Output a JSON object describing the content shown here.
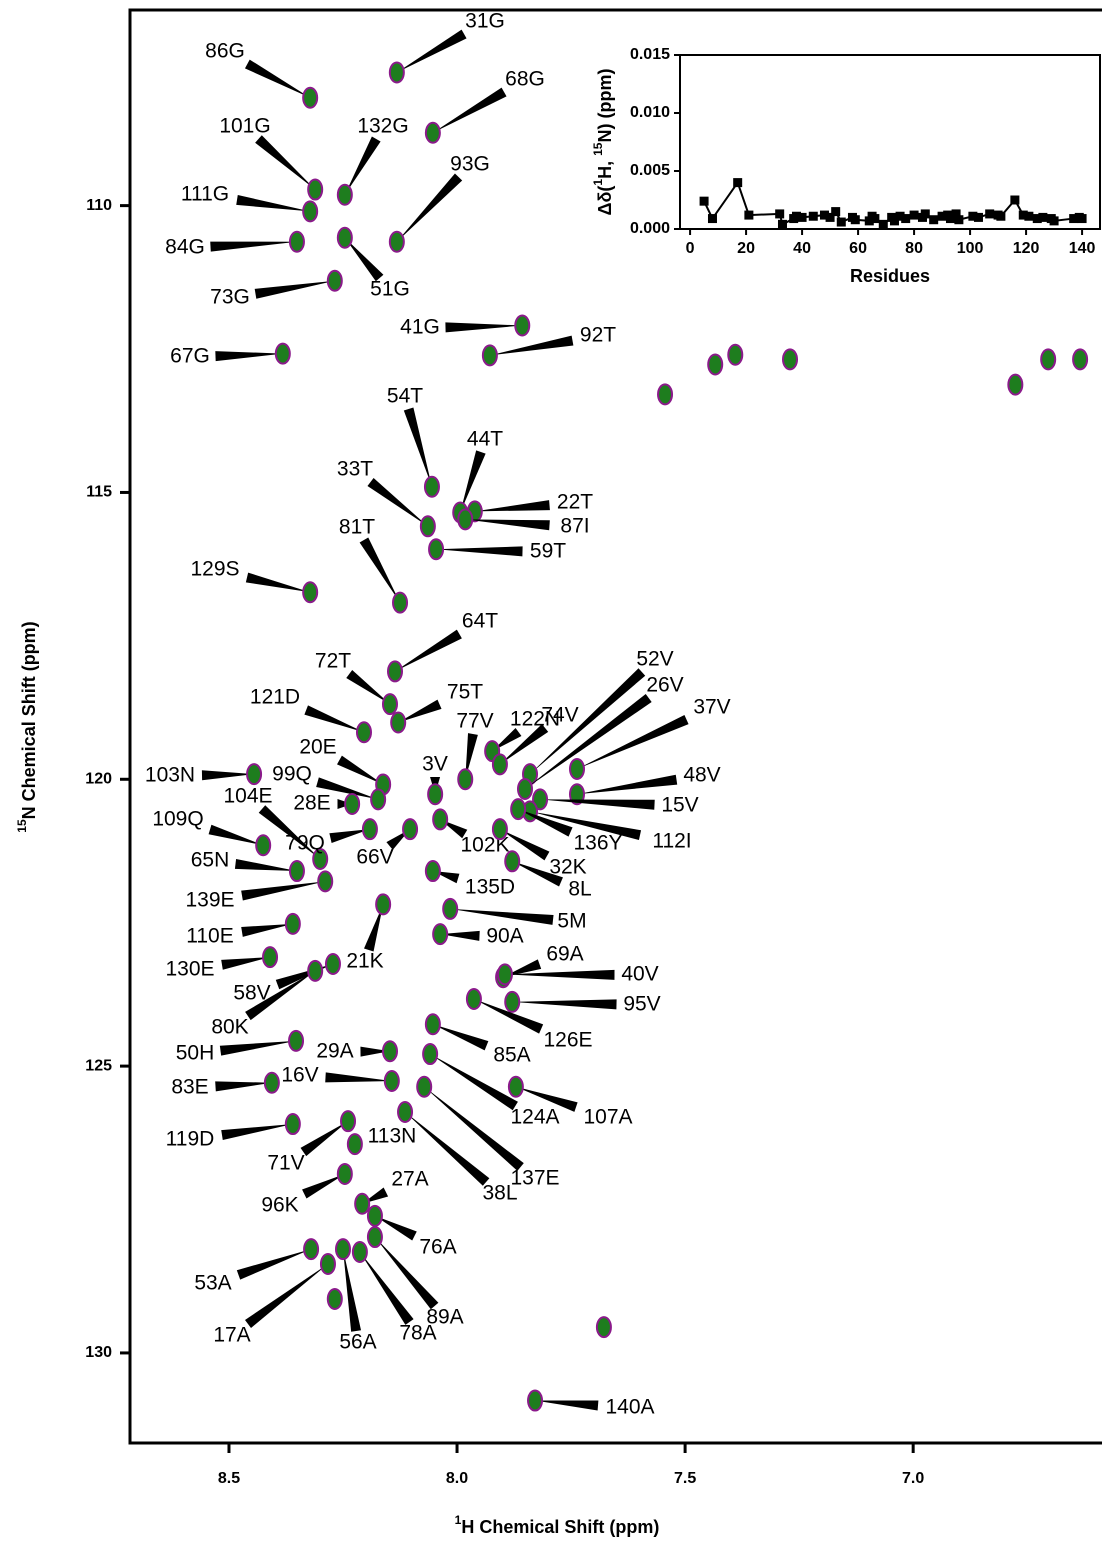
{
  "chart_data": [
    {
      "type": "peaks",
      "x_label": [
        "1",
        "H Chemical Shift (ppm)"
      ],
      "y_label": [
        "15",
        "N Chemical Shift (ppm)"
      ],
      "xlim": [
        8.717,
        6.586
      ],
      "ylim": [
        106.59,
        131.57
      ],
      "xticks": [
        8.5,
        {
          "value": 8,
          "label": "8.0"
        },
        7.5,
        {
          "value": 7,
          "label": "7.0"
        }
      ],
      "yticks": [
        110,
        115,
        120,
        125,
        130
      ],
      "color": "#1e7d1e",
      "edge_color": "#8b1a8b",
      "labels": [
        "31G",
        "86G",
        "68G",
        "101G",
        "132G",
        "111G",
        "84G",
        "93G",
        "51G",
        "73G",
        "67G",
        "41G",
        "92T",
        "54T",
        "44T",
        "33T",
        "22T",
        "87I",
        "59T",
        "81T",
        "129S",
        "64T",
        "72T",
        "75T",
        "121D",
        "122N",
        "77V",
        "74V",
        "52V",
        "26V",
        "37V",
        "48V",
        "3V",
        "20E",
        "99Q",
        "103N",
        "28E",
        "104E",
        "79Q",
        "15V",
        "112I",
        "109Q",
        "136Y",
        "102K",
        "66V",
        "32K",
        "8L",
        "65N",
        "135D",
        "139E",
        "5M",
        "110E",
        "90A",
        "69A",
        "21K",
        "130E",
        "58V",
        "40V",
        "95V",
        "80K",
        "126E",
        "50H",
        "29A",
        "85A",
        "16V",
        "83E",
        "107A",
        "124A",
        "119D",
        "113N",
        "71V",
        "137E",
        "38L",
        "96K",
        "27A",
        "76A",
        "53A",
        "89A",
        "17A",
        "56A",
        "78A",
        "140A",
        null,
        null,
        null,
        null,
        null,
        null,
        null,
        null,
        null
      ],
      "x": [
        8.132,
        8.322,
        8.053,
        8.311,
        8.246,
        8.322,
        8.351,
        8.132,
        8.246,
        8.268,
        8.382,
        7.857,
        7.928,
        8.055,
        7.993,
        8.064,
        7.961,
        7.982,
        8.046,
        8.125,
        8.322,
        8.136,
        8.147,
        8.129,
        8.204,
        7.923,
        7.982,
        7.906,
        7.84,
        7.851,
        7.737,
        7.737,
        8.048,
        8.162,
        8.173,
        8.445,
        8.23,
        8.3,
        8.191,
        7.818,
        7.84,
        8.425,
        7.866,
        8.037,
        8.103,
        7.906,
        7.879,
        8.351,
        8.053,
        8.289,
        8.015,
        8.36,
        8.037,
        7.899,
        8.162,
        8.41,
        8.272,
        7.895,
        7.879,
        8.311,
        7.963,
        8.353,
        8.147,
        8.053,
        8.143,
        8.406,
        7.871,
        8.059,
        8.36,
        8.224,
        8.239,
        8.072,
        8.114,
        8.246,
        8.208,
        8.18,
        8.32,
        8.18,
        8.283,
        8.25,
        8.213,
        7.829,
        7.678,
        7.544,
        7.434,
        7.39,
        7.27,
        6.776,
        6.704,
        6.634,
        8.268
      ],
      "y": [
        107.68,
        108.12,
        108.73,
        109.72,
        109.81,
        110.1,
        110.63,
        110.63,
        110.56,
        111.31,
        112.58,
        112.09,
        112.61,
        114.9,
        115.35,
        115.59,
        115.33,
        115.47,
        115.99,
        116.92,
        116.74,
        118.12,
        118.69,
        119.01,
        119.18,
        119.51,
        120.0,
        119.74,
        119.91,
        120.17,
        119.82,
        120.26,
        120.26,
        120.09,
        120.35,
        119.91,
        120.43,
        121.39,
        120.87,
        120.35,
        120.56,
        121.15,
        120.52,
        120.7,
        120.87,
        120.87,
        121.43,
        121.6,
        121.6,
        121.78,
        122.26,
        122.52,
        122.7,
        123.45,
        122.18,
        123.1,
        123.22,
        123.4,
        123.88,
        123.34,
        123.83,
        124.56,
        124.74,
        124.27,
        125.26,
        125.29,
        125.36,
        124.79,
        126.01,
        126.36,
        125.96,
        125.36,
        125.8,
        126.88,
        127.4,
        127.61,
        128.19,
        127.98,
        128.45,
        128.19,
        128.24,
        130.83,
        129.55,
        113.29,
        112.77,
        112.6,
        112.68,
        113.12,
        112.68,
        112.68,
        129.06
      ]
    },
    {
      "type": "line",
      "x_label": "Residues",
      "y_label": [
        "Δδ(",
        "1",
        "H, ",
        "15",
        "N) (ppm)"
      ],
      "xlim": [
        -3.6,
        146.4
      ],
      "ylim": [
        0,
        0.015
      ],
      "xticks": [
        0,
        20,
        40,
        60,
        80,
        100,
        120,
        140
      ],
      "yticks": [
        {
          "value": 0,
          "label": "0.000"
        },
        {
          "value": 0.005,
          "label": "0.005"
        },
        {
          "value": 0.01,
          "label": "0.010"
        },
        {
          "value": 0.015,
          "label": "0.015"
        }
      ],
      "color": "#000000",
      "x": [
        5,
        8,
        17,
        21,
        32,
        33,
        37,
        38,
        40,
        44,
        48,
        50,
        52,
        54,
        58,
        59,
        64,
        65,
        66,
        69,
        72,
        73,
        75,
        77,
        80,
        83,
        84,
        87,
        90,
        92,
        93,
        95,
        96,
        101,
        103,
        107,
        110,
        111,
        116,
        119,
        121,
        124,
        126,
        129,
        130,
        137,
        139,
        140
      ],
      "values": [
        0.0024,
        0.0009,
        0.004,
        0.0012,
        0.0013,
        0.0004,
        0.0009,
        0.0011,
        0.001,
        0.0011,
        0.0012,
        0.001,
        0.0015,
        0.0006,
        0.001,
        0.0008,
        0.0007,
        0.0011,
        0.0009,
        0.0004,
        0.001,
        0.0007,
        0.0011,
        0.0009,
        0.0012,
        0.001,
        0.0013,
        0.0008,
        0.0011,
        0.0012,
        0.0009,
        0.0013,
        0.0008,
        0.0011,
        0.001,
        0.0013,
        0.0012,
        0.0011,
        0.0025,
        0.0012,
        0.0011,
        0.0009,
        0.001,
        0.0009,
        0.0007,
        0.0009,
        0.001,
        0.0009
      ]
    }
  ]
}
